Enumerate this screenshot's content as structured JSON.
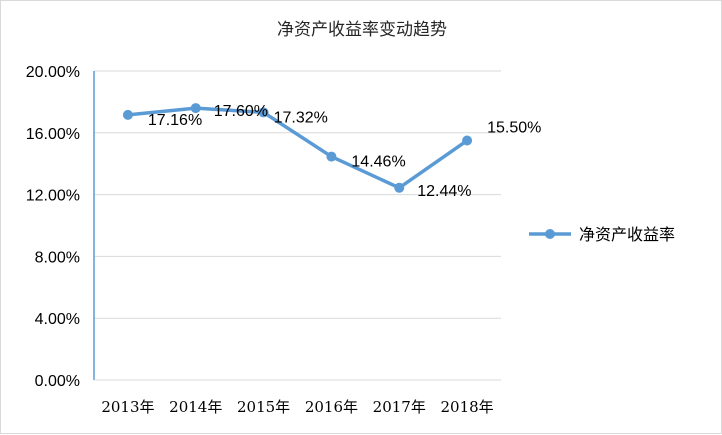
{
  "chart_data": {
    "type": "line",
    "title": "净资产收益率变动趋势",
    "categories": [
      "2013年",
      "2014年",
      "2015年",
      "2016年",
      "2017年",
      "2018年"
    ],
    "series": [
      {
        "name": "净资产收益率",
        "values": [
          17.16,
          17.6,
          17.32,
          14.46,
          12.44,
          15.5
        ],
        "labels": [
          "17.16%",
          "17.60%",
          "17.32%",
          "14.46%",
          "12.44%",
          "15.50%"
        ]
      }
    ],
    "yticks": [
      "0.00%",
      "4.00%",
      "8.00%",
      "12.00%",
      "16.00%",
      "20.00%"
    ],
    "ylim": [
      0,
      20
    ],
    "grid": true,
    "legend": "right",
    "colors": {
      "line": "#5b9bd5",
      "grid": "#d9d9d9",
      "axis": "#5b9bd5"
    }
  }
}
